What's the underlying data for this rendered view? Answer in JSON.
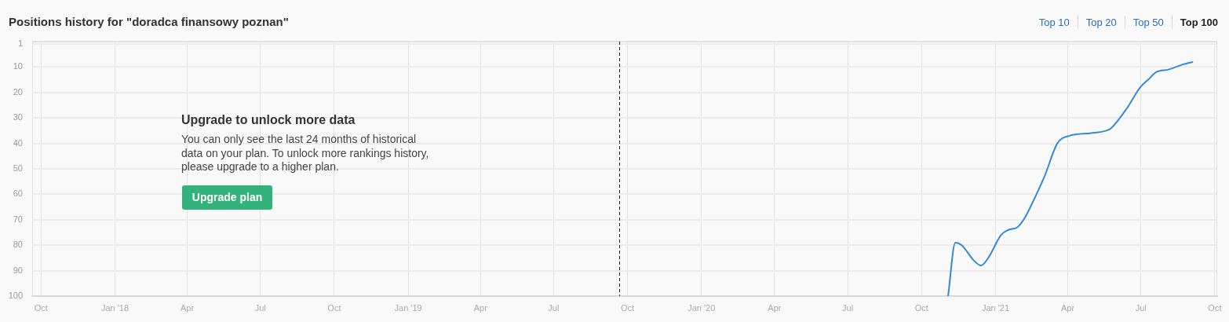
{
  "chart_data": {
    "type": "line",
    "title": "Positions history for \"doradca finansowy poznan\"",
    "x": [
      "2020-11-03",
      "2020-11-12",
      "2020-11-20",
      "2020-12-05",
      "2020-12-14",
      "2020-12-23",
      "2021-01-08",
      "2021-01-17",
      "2021-01-28",
      "2021-02-05",
      "2021-02-21",
      "2021-03-03",
      "2021-03-19",
      "2021-04-03",
      "2021-04-29",
      "2021-05-19",
      "2021-05-25",
      "2021-06-14",
      "2021-06-30",
      "2021-07-10",
      "2021-07-20",
      "2021-08-04",
      "2021-08-22",
      "2021-09-03"
    ],
    "values": [
      100,
      79,
      80,
      86,
      88,
      85,
      76,
      74,
      73,
      70,
      60,
      53,
      40,
      37,
      36,
      35,
      34,
      26,
      18,
      15,
      12,
      11,
      9,
      8
    ],
    "color": "#338ad8",
    "marker": "none",
    "line_style": "solid",
    "grid": true,
    "xlim": [
      "2017-09-20",
      "2021-10-04"
    ],
    "xticks": [
      {
        "value": "2017-10-01",
        "label": "Oct"
      },
      {
        "value": "2018-01-01",
        "label": "Jan '18"
      },
      {
        "value": "2018-04-01",
        "label": "Apr"
      },
      {
        "value": "2018-07-01",
        "label": "Jul"
      },
      {
        "value": "2018-10-01",
        "label": "Oct"
      },
      {
        "value": "2019-01-01",
        "label": "Jan '19"
      },
      {
        "value": "2019-04-01",
        "label": "Apr"
      },
      {
        "value": "2019-07-01",
        "label": "Jul"
      },
      {
        "value": "2019-10-01",
        "label": "Oct"
      },
      {
        "value": "2020-01-01",
        "label": "Jan '20"
      },
      {
        "value": "2020-04-01",
        "label": "Apr"
      },
      {
        "value": "2020-07-01",
        "label": "Jul"
      },
      {
        "value": "2020-10-01",
        "label": "Oct"
      },
      {
        "value": "2021-01-01",
        "label": "Jan '21"
      },
      {
        "value": "2021-04-01",
        "label": "Apr"
      },
      {
        "value": "2021-07-01",
        "label": "Jul"
      },
      {
        "value": "2021-10-01",
        "label": "Oct"
      }
    ],
    "ylim": [
      100,
      0
    ],
    "yticks": [
      1,
      10,
      20,
      30,
      40,
      50,
      60,
      70,
      80,
      90,
      100
    ],
    "ref_lines": [
      {
        "axis": "x",
        "value": "2019-09-21",
        "color": "#222222",
        "line_style": "dashed"
      }
    ],
    "annotations": [
      "Top 10",
      "Top 20",
      "Top 50",
      "Top 100",
      "Upgrade to unlock more data",
      "You can only see the last 24 months of historical data on your plan. To unlock more rankings history, please upgrade to a higher plan.",
      "Upgrade plan"
    ]
  }
}
